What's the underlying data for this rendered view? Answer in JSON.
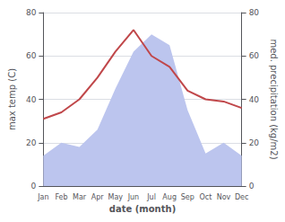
{
  "chart_data": {
    "type": "line",
    "categories": [
      "Jan",
      "Feb",
      "Mar",
      "Apr",
      "May",
      "Jun",
      "Jul",
      "Aug",
      "Sep",
      "Oct",
      "Nov",
      "Dec"
    ],
    "series": [
      {
        "type": "area",
        "axis": "y2",
        "color": "#bcc5ee",
        "values": [
          14,
          20,
          18,
          26,
          45,
          62,
          70,
          65,
          35,
          15,
          20,
          14
        ]
      },
      {
        "type": "line",
        "color": "#c0474a",
        "values": [
          31,
          34,
          40,
          50,
          62,
          72,
          60,
          55,
          44,
          40,
          39,
          36
        ]
      }
    ],
    "xlabel": "date (month)",
    "ylabel": "max temp (C)",
    "y2label": "med. precipitation (kg/m2)",
    "ylim": [
      0,
      80
    ],
    "yticks": [
      0,
      20,
      40,
      60,
      80
    ],
    "y2lim": [
      0,
      80
    ],
    "y2ticks": [
      0,
      20,
      40,
      60,
      80
    ],
    "grid": true
  }
}
